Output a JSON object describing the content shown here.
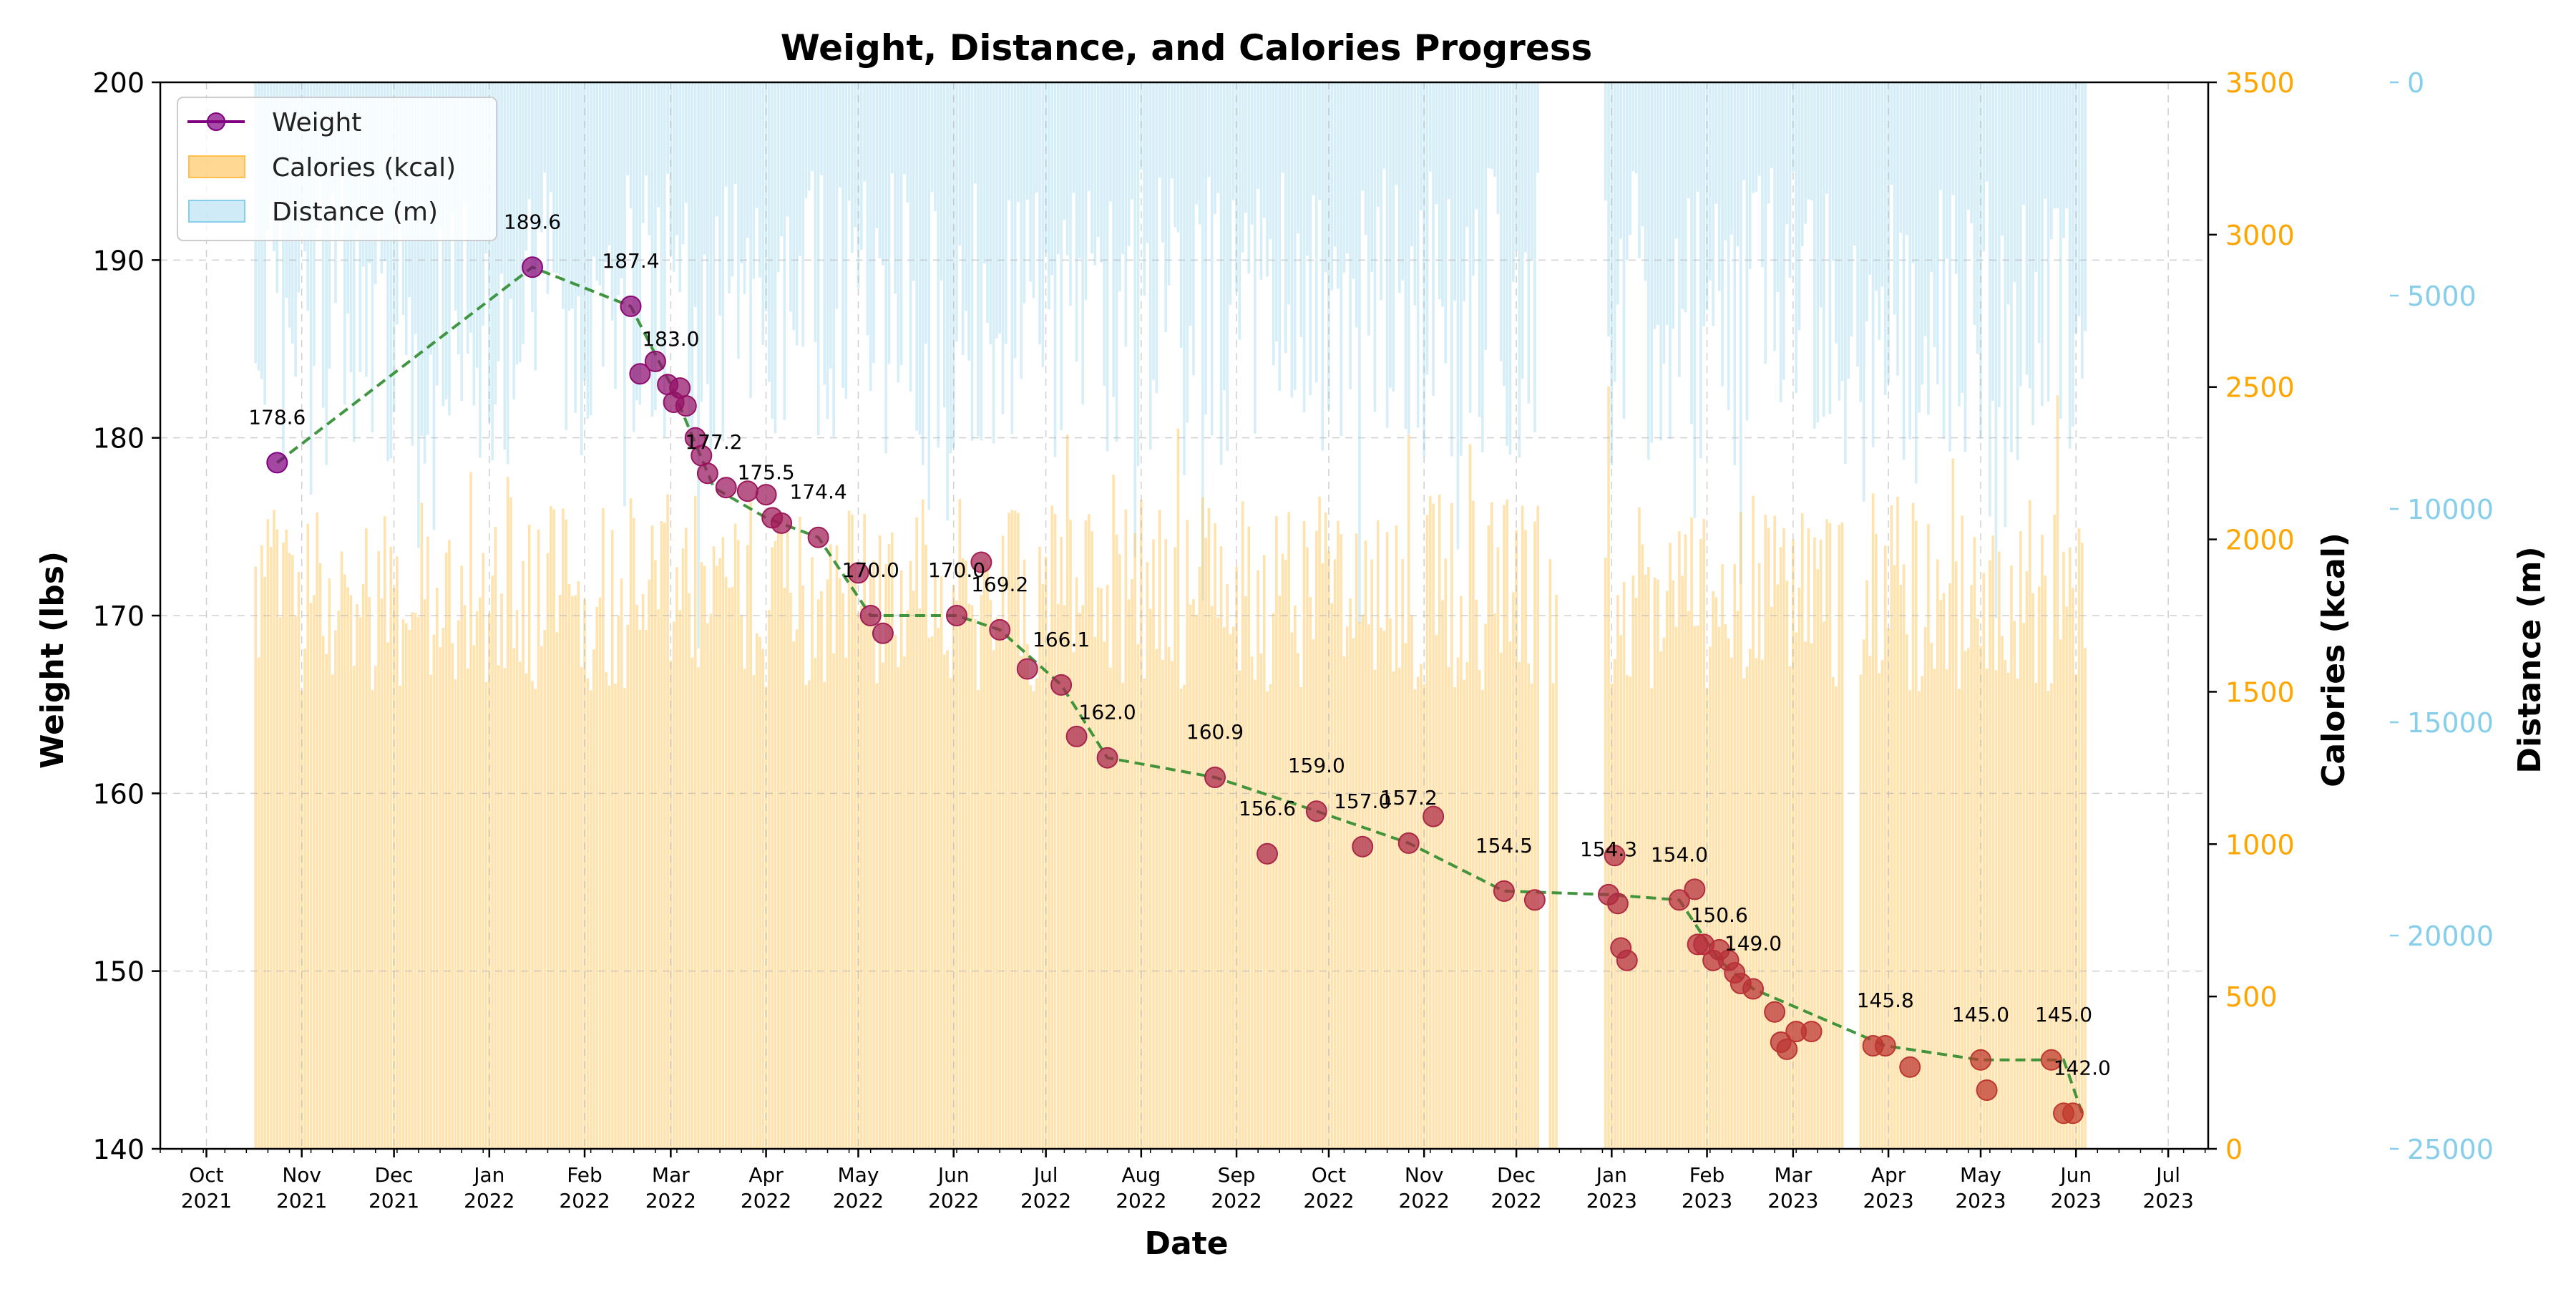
{
  "chart_data": {
    "type": "line",
    "title": "Weight, Distance, and Calories Progress",
    "xlabel": "Date",
    "ylabel": "Weight (lbs)",
    "y2label": "Calories (kcal)",
    "y3label": "Distance (m)",
    "xlim": [
      "2021-09-16",
      "2023-07-14"
    ],
    "ylim": [
      140,
      200
    ],
    "y2lim": [
      0,
      3500
    ],
    "y3lim": [
      25000,
      0
    ],
    "y3_inverted": true,
    "grid": true,
    "legend_position": "top-left",
    "colors": {
      "weight_line": "#2e8b2e",
      "weight_marker_start": "#800080",
      "weight_marker_end": "#c0392b",
      "calories": "#ffc04d",
      "distance": "#87ceeb",
      "y2_axis": "#ffa500",
      "y3_axis": "#87ceeb"
    },
    "x_ticks": [
      {
        "date": "2021-10-01",
        "label": "Oct\n2021"
      },
      {
        "date": "2021-11-01",
        "label": "Nov\n2021"
      },
      {
        "date": "2021-12-01",
        "label": "Dec\n2021"
      },
      {
        "date": "2022-01-01",
        "label": "Jan\n2022"
      },
      {
        "date": "2022-02-01",
        "label": "Feb\n2022"
      },
      {
        "date": "2022-03-01",
        "label": "Mar\n2022"
      },
      {
        "date": "2022-04-01",
        "label": "Apr\n2022"
      },
      {
        "date": "2022-05-01",
        "label": "May\n2022"
      },
      {
        "date": "2022-06-01",
        "label": "Jun\n2022"
      },
      {
        "date": "2022-07-01",
        "label": "Jul\n2022"
      },
      {
        "date": "2022-08-01",
        "label": "Aug\n2022"
      },
      {
        "date": "2022-09-01",
        "label": "Sep\n2022"
      },
      {
        "date": "2022-10-01",
        "label": "Oct\n2022"
      },
      {
        "date": "2022-11-01",
        "label": "Nov\n2022"
      },
      {
        "date": "2022-12-01",
        "label": "Dec\n2022"
      },
      {
        "date": "2023-01-01",
        "label": "Jan\n2023"
      },
      {
        "date": "2023-02-01",
        "label": "Feb\n2023"
      },
      {
        "date": "2023-03-01",
        "label": "Mar\n2023"
      },
      {
        "date": "2023-04-01",
        "label": "Apr\n2023"
      },
      {
        "date": "2023-05-01",
        "label": "May\n2023"
      },
      {
        "date": "2023-06-01",
        "label": "Jun\n2023"
      },
      {
        "date": "2023-07-01",
        "label": "Jul\n2023"
      }
    ],
    "y_ticks": [
      140,
      150,
      160,
      170,
      180,
      190,
      200
    ],
    "y2_ticks": [
      0,
      500,
      1000,
      1500,
      2000,
      2500,
      3000,
      3500
    ],
    "y3_ticks": [
      0,
      5000,
      10000,
      15000,
      20000,
      25000
    ],
    "legend": [
      "Weight",
      "Calories (kcal)",
      "Distance (m)"
    ],
    "series": [
      {
        "name": "Weight",
        "x": [
          "2021-10-24",
          "2022-01-15",
          "2022-02-16",
          "2022-02-19",
          "2022-02-24",
          "2022-02-28",
          "2022-03-02",
          "2022-03-04",
          "2022-03-06",
          "2022-03-09",
          "2022-03-11",
          "2022-03-13",
          "2022-03-19",
          "2022-03-26",
          "2022-04-01",
          "2022-04-03",
          "2022-04-06",
          "2022-04-18",
          "2022-05-01",
          "2022-05-05",
          "2022-05-09",
          "2022-06-02",
          "2022-06-10",
          "2022-06-16",
          "2022-06-25",
          "2022-07-06",
          "2022-07-11",
          "2022-07-21",
          "2022-08-25",
          "2022-09-11",
          "2022-09-27",
          "2022-10-12",
          "2022-10-27",
          "2022-11-04",
          "2022-11-27",
          "2022-12-07",
          "2022-12-31",
          "2023-01-02",
          "2023-01-03",
          "2023-01-04",
          "2023-01-06",
          "2023-01-23",
          "2023-01-28",
          "2023-01-29",
          "2023-01-31",
          "2023-02-03",
          "2023-02-05",
          "2023-02-08",
          "2023-02-10",
          "2023-02-12",
          "2023-02-16",
          "2023-02-23",
          "2023-02-25",
          "2023-02-27",
          "2023-03-02",
          "2023-03-07",
          "2023-03-27",
          "2023-03-31",
          "2023-04-08",
          "2023-05-01",
          "2023-05-03",
          "2023-05-24",
          "2023-05-28",
          "2023-05-31"
        ],
        "values": [
          178.6,
          189.6,
          187.4,
          183.6,
          184.3,
          183.0,
          182.0,
          182.8,
          181.8,
          180.0,
          179.0,
          178.0,
          177.2,
          177.0,
          176.8,
          175.5,
          175.2,
          174.4,
          172.4,
          170.0,
          169.0,
          170.0,
          173.0,
          169.2,
          167.0,
          166.1,
          163.2,
          162.0,
          160.9,
          156.6,
          159.0,
          157.0,
          157.2,
          158.7,
          154.5,
          154.0,
          154.3,
          156.5,
          153.8,
          151.3,
          150.6,
          154.0,
          154.6,
          151.5,
          151.5,
          150.6,
          151.2,
          150.6,
          149.9,
          149.3,
          149.0,
          147.7,
          146.0,
          145.6,
          146.6,
          146.6,
          145.8,
          145.8,
          144.6,
          145.0,
          143.3,
          145.0,
          142.0,
          142.0
        ],
        "trend": {
          "x": [
            "2021-10-24",
            "2022-01-15",
            "2022-02-16",
            "2022-03-01",
            "2022-03-15",
            "2022-04-01",
            "2022-04-18",
            "2022-05-05",
            "2022-06-02",
            "2022-06-16",
            "2022-07-06",
            "2022-07-21",
            "2022-08-25",
            "2022-09-27",
            "2022-10-27",
            "2022-11-27",
            "2022-12-31",
            "2023-01-23",
            "2023-02-05",
            "2023-02-16",
            "2023-03-31",
            "2023-05-01",
            "2023-05-28",
            "2023-06-03"
          ],
          "values": [
            178.6,
            189.6,
            187.4,
            183.0,
            177.2,
            175.5,
            174.4,
            170.0,
            170.0,
            169.2,
            166.1,
            162.0,
            160.9,
            159.0,
            157.2,
            154.5,
            154.3,
            154.0,
            150.6,
            149.0,
            145.8,
            145.0,
            145.0,
            142.0
          ]
        }
      },
      {
        "name": "Calories (kcal)",
        "axis": "y2",
        "x_start": "2021-10-17",
        "x_end": "2023-06-04",
        "typical_range": [
          1500,
          2150
        ],
        "gaps": [
          [
            "2022-12-09",
            "2022-12-11"
          ],
          [
            "2022-12-15",
            "2022-12-29"
          ],
          [
            "2023-03-18",
            "2023-03-22"
          ]
        ]
      },
      {
        "name": "Distance (m)",
        "axis": "y3",
        "x_start": "2021-10-17",
        "x_end": "2023-06-04",
        "typical_range": [
          2000,
          9000
        ],
        "gaps": [
          [
            "2022-12-09",
            "2022-12-29"
          ]
        ]
      }
    ],
    "annotations": [
      {
        "x": "2021-10-24",
        "y": 178.6,
        "text": "178.6"
      },
      {
        "x": "2022-01-15",
        "y": 189.6,
        "text": "189.6"
      },
      {
        "x": "2022-02-16",
        "y": 187.4,
        "text": "187.4"
      },
      {
        "x": "2022-03-01",
        "y": 183.0,
        "text": "183.0"
      },
      {
        "x": "2022-03-15",
        "y": 177.2,
        "text": "177.2"
      },
      {
        "x": "2022-04-01",
        "y": 175.5,
        "text": "175.5"
      },
      {
        "x": "2022-04-18",
        "y": 174.4,
        "text": "174.4"
      },
      {
        "x": "2022-05-05",
        "y": 170.0,
        "text": "170.0"
      },
      {
        "x": "2022-06-02",
        "y": 170.0,
        "text": "170.0"
      },
      {
        "x": "2022-06-16",
        "y": 169.2,
        "text": "169.2"
      },
      {
        "x": "2022-07-06",
        "y": 166.1,
        "text": "166.1"
      },
      {
        "x": "2022-07-21",
        "y": 162.0,
        "text": "162.0"
      },
      {
        "x": "2022-08-25",
        "y": 160.9,
        "text": "160.9"
      },
      {
        "x": "2022-09-11",
        "y": 156.6,
        "text": "156.6"
      },
      {
        "x": "2022-09-27",
        "y": 159.0,
        "text": "159.0"
      },
      {
        "x": "2022-10-12",
        "y": 157.0,
        "text": "157.0"
      },
      {
        "x": "2022-10-27",
        "y": 157.2,
        "text": "157.2"
      },
      {
        "x": "2022-11-27",
        "y": 154.5,
        "text": "154.5"
      },
      {
        "x": "2022-12-31",
        "y": 154.3,
        "text": "154.3"
      },
      {
        "x": "2023-01-23",
        "y": 154.0,
        "text": "154.0"
      },
      {
        "x": "2023-02-05",
        "y": 150.6,
        "text": "150.6"
      },
      {
        "x": "2023-02-16",
        "y": 149.0,
        "text": "149.0"
      },
      {
        "x": "2023-03-31",
        "y": 145.8,
        "text": "145.8"
      },
      {
        "x": "2023-05-01",
        "y": 145.0,
        "text": "145.0"
      },
      {
        "x": "2023-05-28",
        "y": 145.0,
        "text": "145.0"
      },
      {
        "x": "2023-06-03",
        "y": 142.0,
        "text": "142.0"
      }
    ]
  }
}
